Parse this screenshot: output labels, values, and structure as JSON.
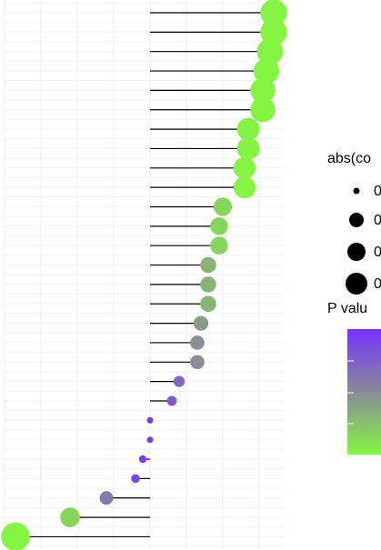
{
  "chart_data": {
    "type": "lollipop",
    "x_baseline": 0,
    "values": [
      0.34,
      0.34,
      0.33,
      0.32,
      0.31,
      0.31,
      0.27,
      0.27,
      0.26,
      0.26,
      0.2,
      0.19,
      0.19,
      0.16,
      0.16,
      0.16,
      0.14,
      0.13,
      0.13,
      0.08,
      0.06,
      0.0,
      0.0,
      -0.02,
      -0.04,
      -0.12,
      -0.22,
      -0.37
    ],
    "abs_values": [
      0.34,
      0.34,
      0.33,
      0.32,
      0.31,
      0.31,
      0.27,
      0.27,
      0.26,
      0.26,
      0.2,
      0.19,
      0.19,
      0.16,
      0.16,
      0.16,
      0.14,
      0.13,
      0.13,
      0.08,
      0.06,
      0.0,
      0.0,
      0.02,
      0.04,
      0.12,
      0.22,
      0.37
    ],
    "p_values": [
      0.0,
      0.0,
      0.0,
      0.0,
      0.0,
      0.0,
      0.01,
      0.01,
      0.0,
      0.0,
      0.15,
      0.15,
      0.15,
      0.3,
      0.3,
      0.3,
      0.42,
      0.48,
      0.48,
      0.7,
      0.78,
      0.95,
      0.95,
      0.95,
      0.9,
      0.6,
      0.15,
      0.0
    ],
    "color_low": "#84f542",
    "color_mid": "#8a8a99",
    "color_high": "#7733ff",
    "legend_size_title": "abs(co",
    "legend_size_labels": [
      "0",
      "0",
      "0",
      "0"
    ],
    "legend_color_title": "P valu"
  }
}
